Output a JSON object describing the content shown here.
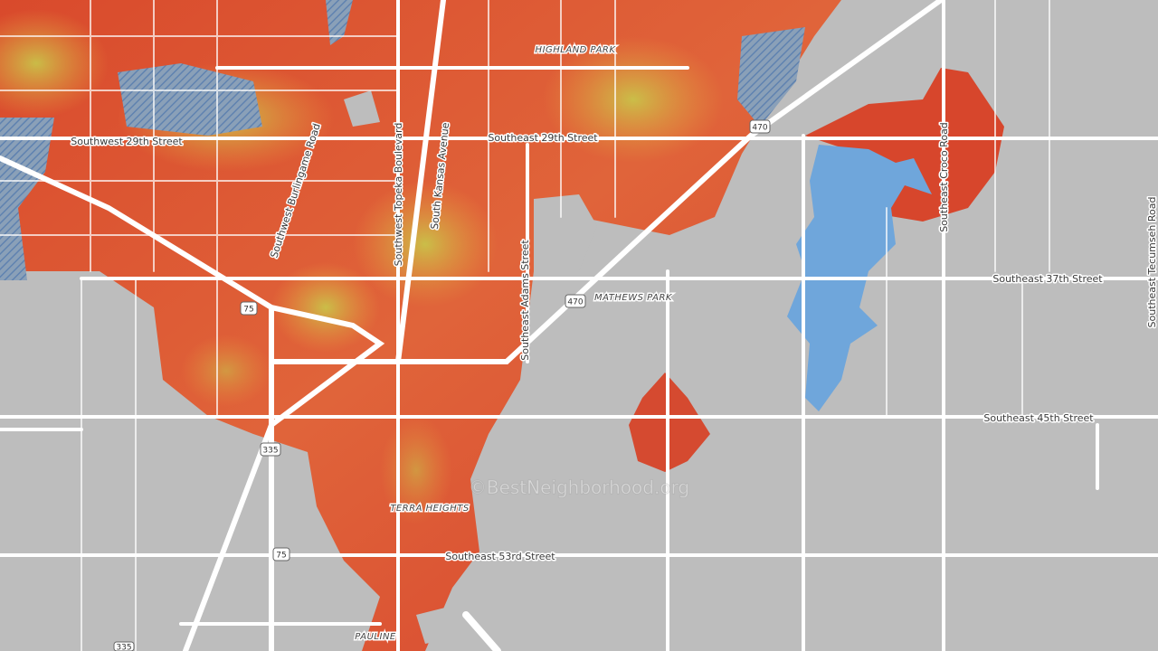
{
  "neighborhoods": {
    "highland_park": "HIGHLAND PARK",
    "mathews_park": "MATHEWS PARK",
    "terra_heights": "TERRA HEIGHTS",
    "pauline": "PAULINE"
  },
  "streets": {
    "sw_29th": "Southwest 29th Street",
    "se_29th": "Southeast 29th Street",
    "burlingame": "Southwest Burlingame Road",
    "topeka": "Southwest Topeka Boulevard",
    "kansas": "South Kansas Avenue",
    "adams": "Southeast Adams Street",
    "se_37th": "Southeast 37th Street",
    "croco": "Southeast Croco Road",
    "tecumseh": "Southeast Tecumseh Road",
    "se_45th": "Southeast 45th Street",
    "se_53rd": "Southeast 53rd Street"
  },
  "shields": {
    "i470_a": "470",
    "i470_b": "470",
    "i75_a": "75",
    "i75_b": "75",
    "i335_a": "335",
    "i335_b": "335"
  },
  "watermark": "©BestNeighborhood.org"
}
